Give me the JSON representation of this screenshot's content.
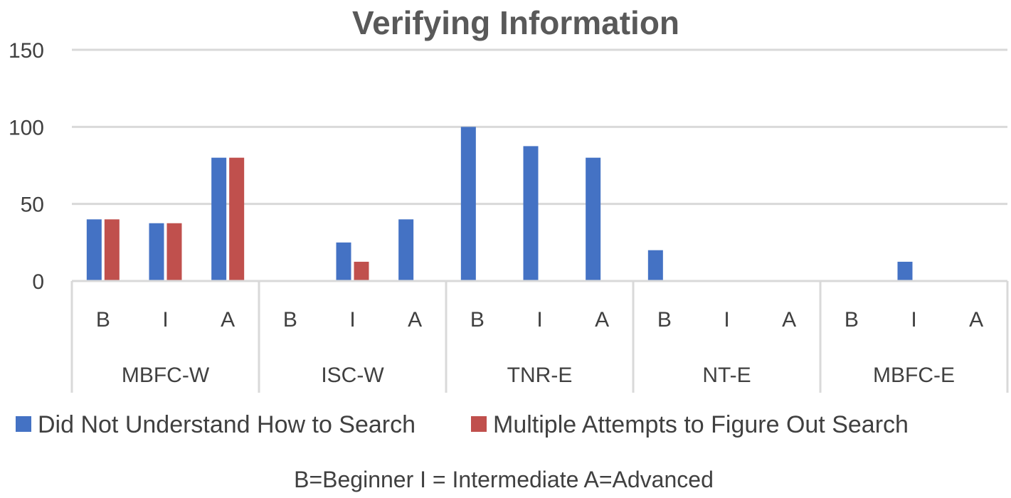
{
  "chart_data": {
    "type": "bar",
    "title": "Verifying Information",
    "xlabel": "",
    "ylabel": "",
    "ylim": [
      0,
      150
    ],
    "yticks": [
      0,
      50,
      100,
      150
    ],
    "grid": true,
    "legend_position": "bottom",
    "groups": [
      {
        "label": "MBFC-W",
        "categories": [
          "B",
          "I",
          "A"
        ]
      },
      {
        "label": "ISC-W",
        "categories": [
          "B",
          "I",
          "A"
        ]
      },
      {
        "label": "TNR-E",
        "categories": [
          "B",
          "I",
          "A"
        ]
      },
      {
        "label": "NT-E",
        "categories": [
          "B",
          "I",
          "A"
        ]
      },
      {
        "label": "MBFC-E",
        "categories": [
          "B",
          "I",
          "A"
        ]
      }
    ],
    "series": [
      {
        "name": "Did Not Understand How to Search",
        "color": "#4472C4",
        "values": [
          40,
          37.5,
          80,
          0,
          25,
          40,
          100,
          87.5,
          80,
          20,
          0,
          0,
          0,
          12.5,
          0
        ]
      },
      {
        "name": "Multiple Attempts to Figure Out Search",
        "color": "#C0504D",
        "values": [
          40,
          37.5,
          80,
          0,
          12.5,
          0,
          0,
          0,
          0,
          0,
          0,
          0,
          0,
          0,
          0
        ]
      }
    ],
    "note": "B=Beginner  I = Intermediate  A=Advanced"
  }
}
